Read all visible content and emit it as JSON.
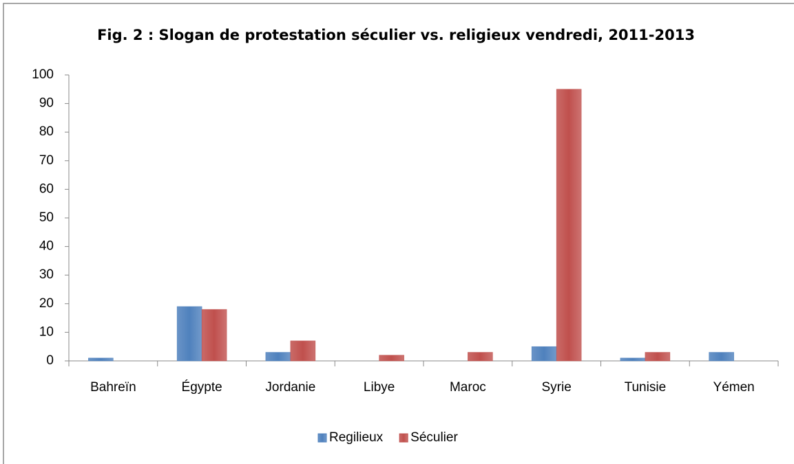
{
  "chart_data": {
    "type": "bar",
    "title": "Fig. 2 : Slogan de protestation séculier vs. religieux vendredi, 2011-2013",
    "categories": [
      "Bahreïn",
      "Égypte",
      "Jordanie",
      "Libye",
      "Maroc",
      "Syrie",
      "Tunisie",
      "Yémen"
    ],
    "series": [
      {
        "name": "Regilieux",
        "color": "#4f81bd",
        "values": [
          1,
          19,
          3,
          0,
          0,
          5,
          1,
          3
        ]
      },
      {
        "name": "Séculier",
        "color": "#c0504d",
        "values": [
          0,
          18,
          7,
          2,
          3,
          95,
          3,
          0
        ]
      }
    ],
    "ylim": [
      0,
      100
    ],
    "yticks": [
      0,
      10,
      20,
      30,
      40,
      50,
      60,
      70,
      80,
      90,
      100
    ],
    "legend": "bottom"
  }
}
